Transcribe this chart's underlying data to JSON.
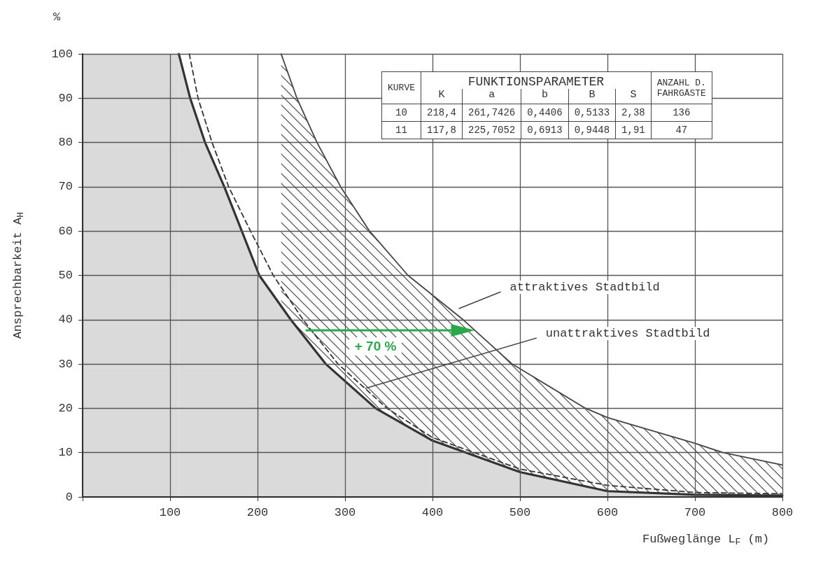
{
  "chart_data": [
    {
      "type": "line",
      "xlabel": "Fußweglänge L$_{F}$ (m)",
      "ylabel": "Ansprechbarkeit A$_{H}$",
      "xlim": [
        0,
        800
      ],
      "xticks": [
        {
          "value": 0,
          "label": null
        },
        100,
        200,
        300,
        400,
        500,
        600,
        700,
        800
      ],
      "ylim": [
        0,
        100
      ],
      "yticks": [
        0,
        10,
        20,
        30,
        40,
        50,
        60,
        70,
        80,
        90,
        100
      ],
      "grid": true,
      "marker": "none",
      "series": [
        {
          "type": "area",
          "color": "#444444",
          "x": [
            227,
            245,
            268,
            295,
            328,
            372,
            435,
            491,
            575,
            600,
            700,
            732,
            800
          ],
          "values": [
            100,
            90,
            80,
            70,
            60,
            50,
            40,
            30,
            20,
            17.9,
            12.1,
            10,
            7.2
          ]
        },
        {
          "type": "line",
          "color": "#333333",
          "line_style": "dashed",
          "x": [
            122,
            132,
            148,
            167,
            192,
            218,
            252,
            292,
            348,
            400,
            500,
            600,
            700,
            800
          ],
          "values": [
            100,
            90,
            80,
            70,
            60,
            50,
            40,
            30,
            20,
            13.4,
            6.3,
            2.6,
            1.0,
            0.7
          ]
        },
        {
          "type": "area",
          "color": "#333333",
          "x": [
            110,
            123,
            140,
            162,
            182,
            202,
            238,
            278,
            335,
            400,
            500,
            600,
            700,
            800
          ],
          "values": [
            100,
            90,
            80,
            70,
            60,
            50,
            40,
            30,
            20,
            12.7,
            5.6,
            1.3,
            0.5,
            0.3
          ]
        }
      ],
      "bands": [
        {
          "axis": "x",
          "from": 0,
          "to": 110,
          "color": "#dadada"
        }
      ],
      "annotations": [
        "%",
        "attraktives Stadtbild",
        {
          "text": "unattraktives Stadtbild",
          "x": 323,
          "y": 24.5
        },
        "+ 70 %"
      ]
    },
    {
      "type": "other",
      "annotations": [
        "KURVE",
        "FUNKTIONSPARAMETER",
        "K",
        "a",
        "b",
        "B",
        "S",
        "ANZAHL D. FAHRGÄSTE",
        "10",
        "218,4",
        "261,7426",
        "0,4406",
        "0,5133",
        "2,38",
        "136",
        "11",
        "117,8",
        "225,7052",
        "0,6913",
        "0,9448",
        "1,91",
        "47"
      ]
    }
  ]
}
